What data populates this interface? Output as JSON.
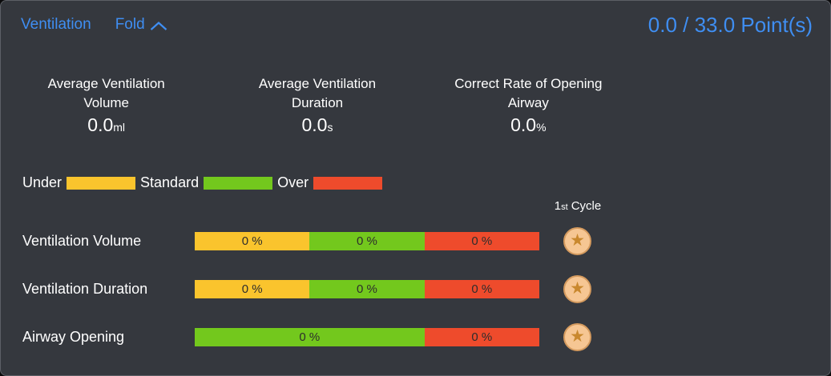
{
  "header": {
    "title": "Ventilation",
    "fold_label": "Fold",
    "score": "0.0 / 33.0 Point(s)"
  },
  "colors": {
    "under": "#fac42d",
    "standard": "#73c81d",
    "over": "#ee4b2c",
    "accent_blue": "#3f8ef2",
    "panel_bg": "#35383e",
    "badge_bg": "#f6c693",
    "badge_star": "#c9882e"
  },
  "icons": {
    "star": "★"
  },
  "stats": [
    {
      "label_line1": "Average Ventilation",
      "label_line2": "Volume",
      "value": "0.0",
      "unit": "ml"
    },
    {
      "label_line1": "Average Ventilation",
      "label_line2": "Duration",
      "value": "0.0",
      "unit": "s"
    },
    {
      "label_line1": "Correct Rate of Opening",
      "label_line2": "Airway",
      "value": "0.0",
      "unit": "%"
    }
  ],
  "legend": [
    {
      "label": "Under",
      "type": "under"
    },
    {
      "label": "Standard",
      "type": "standard"
    },
    {
      "label": "Over",
      "type": "over"
    }
  ],
  "cycle": {
    "number": "1",
    "ordinal": "st",
    "word": "Cycle"
  },
  "rows": [
    {
      "label": "Ventilation Volume",
      "segments": [
        {
          "type": "under",
          "label": "0 %",
          "width_pct": 33.33
        },
        {
          "type": "standard",
          "label": "0 %",
          "width_pct": 33.33
        },
        {
          "type": "over",
          "label": "0 %",
          "width_pct": 33.34
        }
      ]
    },
    {
      "label": "Ventilation Duration",
      "segments": [
        {
          "type": "under",
          "label": "0 %",
          "width_pct": 33.33
        },
        {
          "type": "standard",
          "label": "0 %",
          "width_pct": 33.33
        },
        {
          "type": "over",
          "label": "0 %",
          "width_pct": 33.34
        }
      ]
    },
    {
      "label": "Airway Opening",
      "segments": [
        {
          "type": "standard",
          "label": "0 %",
          "width_pct": 66.66
        },
        {
          "type": "over",
          "label": "0 %",
          "width_pct": 33.34
        }
      ]
    }
  ]
}
